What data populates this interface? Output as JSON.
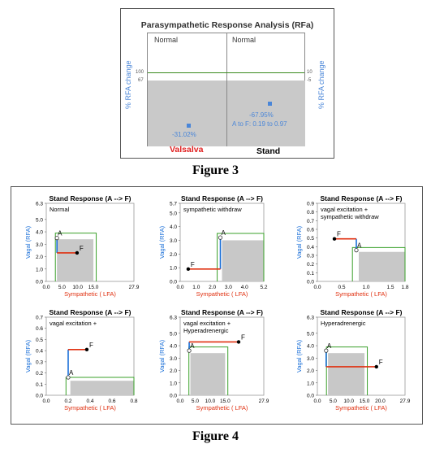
{
  "figure3": {
    "title": "Parasympathetic Response Analysis (RFa)",
    "caption": "Figure 3",
    "left_panel_label": "Normal",
    "right_panel_label": "Normal",
    "ylabel": "% RFA change",
    "left_ticks": [
      "100",
      "67"
    ],
    "right_ticks": [
      "10",
      "-5"
    ],
    "left_note": "-31.02%",
    "right_note_1": "-67.95%",
    "right_note_2": "A to F: 0.19 to 0.97",
    "left_bottom_label": "Valsalva",
    "right_bottom_label": "Stand",
    "colors": {
      "title_red": "#e02020",
      "blue": "#4a86d8",
      "green": "#3a8a1e",
      "gray": "#c9c9c9"
    }
  },
  "figure4": {
    "caption": "Figure 4",
    "colors": {
      "red": "#e03010",
      "blue": "#1a6fd8",
      "green": "#3aa02a",
      "gray": "#c8c8c8"
    },
    "panels": [
      {
        "title": "Stand Response (A --> F)",
        "label": "Normal",
        "xlabel": "Sympathetic ( LFA)",
        "ylabel": "Vagal (RFA)",
        "xticks": [
          "0.0",
          "5.0",
          "10.0",
          "15.0",
          "27.9"
        ],
        "yticks": [
          "6.3",
          "5.0",
          "4.0",
          "3.0",
          "2.0",
          "1.0",
          "0.0"
        ],
        "ymax_label": "6.3",
        "A": {
          "x": 3.4,
          "y": 3.5
        },
        "F": {
          "x": 9.8,
          "y": 2.3
        }
      },
      {
        "title": "Stand Response (A --> F)",
        "label": "sympathetic withdraw",
        "xlabel": "Sympathetic ( LFA)",
        "ylabel": "Vagal (RFA)",
        "xticks": [
          "0.0",
          "1.0",
          "2.0",
          "3.0",
          "4.0",
          "5.2"
        ],
        "yticks": [
          "5.7",
          "5.0",
          "4.0",
          "3.0",
          "2.0",
          "1.0",
          "0.0"
        ],
        "A": {
          "x": 2.5,
          "y": 3.2
        },
        "F": {
          "x": 0.5,
          "y": 0.9
        }
      },
      {
        "title": "Stand Response (A --> F)",
        "label": "vagal excitation + sympathetic withdraw",
        "xlabel": "Sympathetic ( LFA)",
        "ylabel": "Vagal (RFA)",
        "xticks": [
          "0.0",
          "0.5",
          "1.0",
          "1.5",
          "1.8"
        ],
        "yticks": [
          "0.9",
          "0.8",
          "0.7",
          "0.6",
          "0.5",
          "0.4",
          "0.3",
          "0.2",
          "0.1",
          "0.0"
        ],
        "A": {
          "x": 0.8,
          "y": 0.36
        },
        "F": {
          "x": 0.35,
          "y": 0.49
        }
      },
      {
        "title": "Stand Response (A --> F)",
        "label": "vagal excitation +",
        "xlabel": "Sympathetic ( LFA)",
        "ylabel": "Vagal (RFA)",
        "xticks": [
          "0.0",
          "0.2",
          "0.4",
          "0.6",
          "0.8"
        ],
        "yticks": [
          "0.7",
          "0.6",
          "0.5",
          "0.4",
          "0.3",
          "0.2",
          "0.1",
          "0.0"
        ],
        "A": {
          "x": 0.2,
          "y": 0.16
        },
        "F": {
          "x": 0.37,
          "y": 0.41
        }
      },
      {
        "title": "Stand Response (A --> F)",
        "label": "vagal excitation + Hyperadrenergic",
        "xlabel": "Sympathetic ( LFA)",
        "ylabel": "Vagal (RFA)",
        "xticks": [
          "0.0",
          "5.0",
          "10.0",
          "15.0",
          "27.9"
        ],
        "yticks": [
          "6.3",
          "5.0",
          "4.0",
          "3.0",
          "2.0",
          "1.0",
          "0.0"
        ],
        "A": {
          "x": 3.0,
          "y": 3.6
        },
        "F": {
          "x": 19.5,
          "y": 4.3
        }
      },
      {
        "title": "Stand Response (A --> F)",
        "label": "Hyperadrenergic",
        "xlabel": "Sympathetic ( LFA)",
        "ylabel": "Vagal (RFA)",
        "xticks": [
          "0.0",
          "5.0",
          "10.0",
          "15.0",
          "20.0",
          "27.9"
        ],
        "yticks": [
          "6.3",
          "5.0",
          "4.0",
          "3.0",
          "2.0",
          "1.0",
          "0.0"
        ],
        "A": {
          "x": 2.8,
          "y": 3.6
        },
        "F": {
          "x": 18.8,
          "y": 2.3
        }
      }
    ]
  }
}
